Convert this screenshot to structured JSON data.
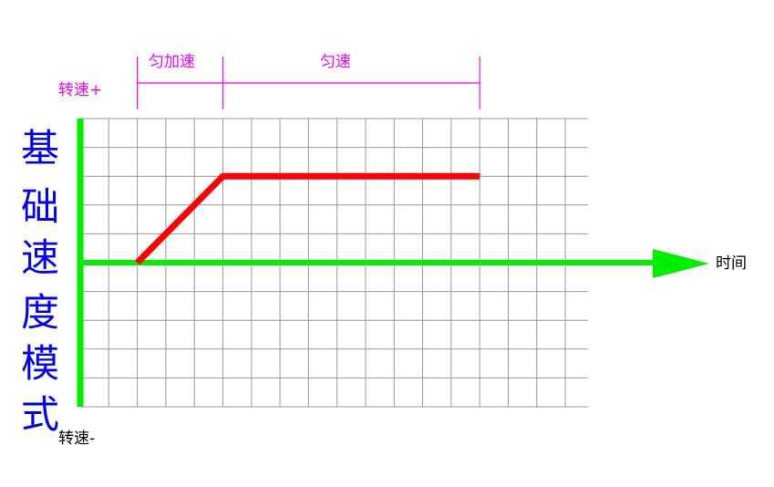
{
  "title_vertical": [
    "基",
    "础",
    "速",
    "度",
    "模",
    "式"
  ],
  "y_axis": {
    "positive_label": "转速+",
    "negative_label": "转速-"
  },
  "x_axis": {
    "label": "时间"
  },
  "phases": [
    {
      "label": "匀加速"
    },
    {
      "label": "匀速"
    }
  ],
  "colors": {
    "axis": "#00ee00",
    "speed_curve": "#ff0000",
    "phase_bracket": "#ff00ff",
    "title": "#0000ff",
    "grid": "#999999"
  }
}
